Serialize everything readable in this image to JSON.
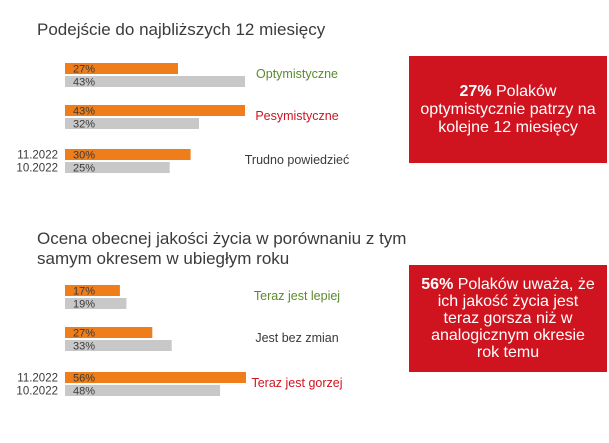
{
  "colors": {
    "current": "#ee7d1a",
    "previous": "#c8c8c8",
    "positive": "#5c8a2a",
    "negative": "#d0141f",
    "neutral": "#3a3a3a",
    "callout_bg": "#d0141f"
  },
  "chart_data": [
    {
      "type": "bar",
      "orientation": "horizontal",
      "title": "Podejście do najbliższych 12 miesięcy",
      "series": [
        {
          "name": "11.2022",
          "color": "#ee7d1a",
          "values": [
            27,
            43,
            30
          ]
        },
        {
          "name": "10.2022",
          "color": "#c8c8c8",
          "values": [
            43,
            32,
            25
          ]
        }
      ],
      "categories": [
        "Optymistyczne",
        "Pesymistyczne",
        "Trudno powiedzieć"
      ],
      "category_colors": [
        "#5c8a2a",
        "#d0141f",
        "#3a3a3a"
      ],
      "value_suffix": "%",
      "xlim": [
        0,
        43
      ],
      "legend": "left of last group"
    },
    {
      "type": "bar",
      "orientation": "horizontal",
      "title": "Ocena obecnej jakości życia w porównaniu z tym samym okresem w ubiegłym roku",
      "series": [
        {
          "name": "11.2022",
          "color": "#ee7d1a",
          "values": [
            17,
            27,
            56
          ]
        },
        {
          "name": "10.2022",
          "color": "#c8c8c8",
          "values": [
            19,
            33,
            48
          ]
        }
      ],
      "categories": [
        "Teraz jest lepiej",
        "Jest bez zmian",
        "Teraz jest gorzej"
      ],
      "category_colors": [
        "#5c8a2a",
        "#3a3a3a",
        "#d0141f"
      ],
      "value_suffix": "%",
      "xlim": [
        0,
        56
      ],
      "legend": "left of last group"
    }
  ],
  "callouts": [
    {
      "strong": "27%",
      "rest": " Polaków optymistycznie patrzy na kolejne 12 miesięcy"
    },
    {
      "strong": "56%",
      "rest": " Polaków uważa, że ich jakość życia jest teraz gorsza niż w analogicznym okresie rok temu"
    }
  ]
}
